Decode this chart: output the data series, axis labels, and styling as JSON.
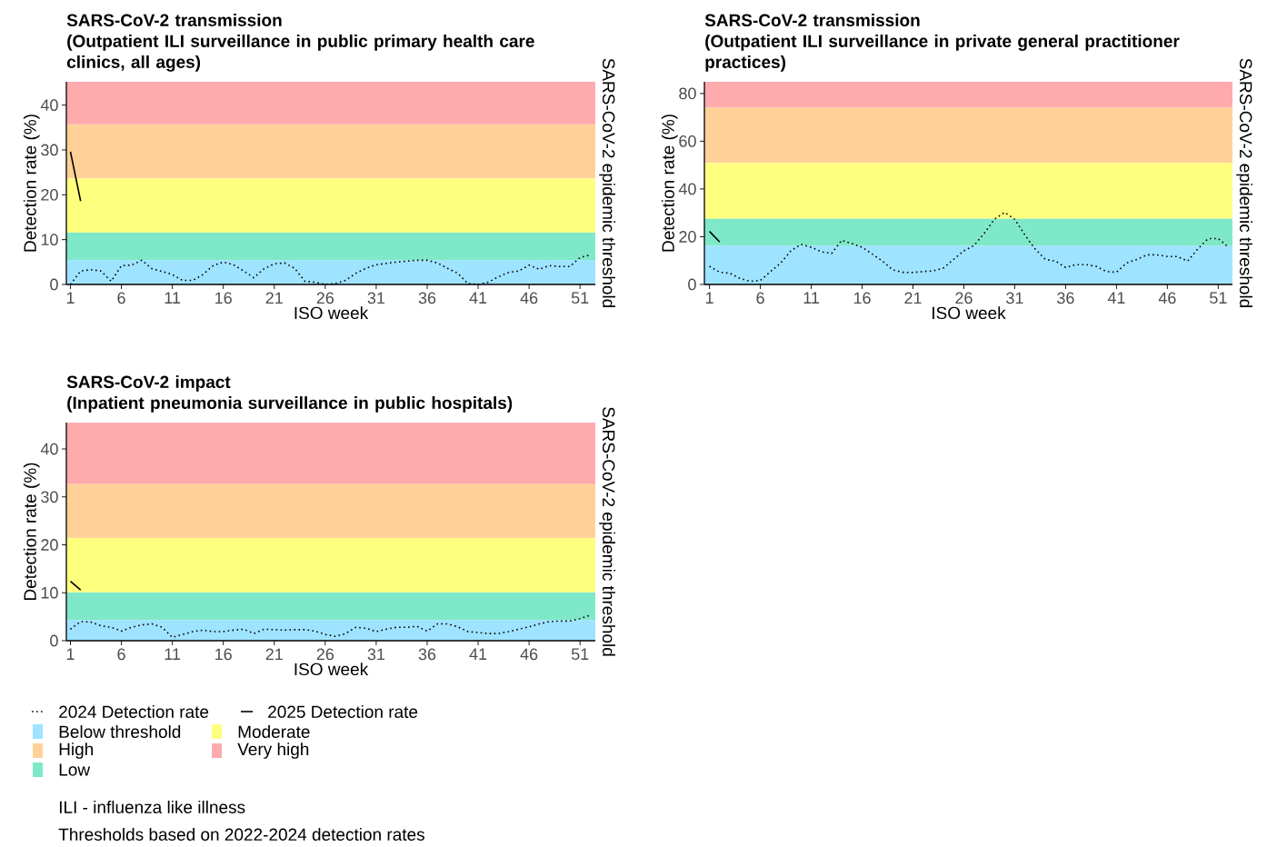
{
  "chart_data": [
    {
      "type": "line",
      "title": "SARS-CoV-2 transmission",
      "subtitle": "(Outpatient ILI surveillance in public primary health care clinics, all ages)",
      "xlabel": "ISO week",
      "ylabel": "Detection rate (%)",
      "y2label": "SARS-CoV-2 epidemic threshold",
      "xlim": [
        0.6,
        52.5
      ],
      "xticks": [
        1,
        6,
        11,
        16,
        21,
        26,
        31,
        36,
        41,
        46,
        51
      ],
      "ylim": [
        0,
        45.2
      ],
      "yticks": [
        0,
        10,
        20,
        30,
        40
      ],
      "bands": [
        {
          "axis": "y",
          "from": 0,
          "to": 5.4,
          "color": "#9ee3ff"
        },
        {
          "axis": "y",
          "from": 23.6,
          "to": 35.7,
          "color": "#ffd199"
        },
        {
          "axis": "y",
          "from": 5.4,
          "to": 11.6,
          "color": "#7fe8c8"
        },
        {
          "axis": "y",
          "from": 11.6,
          "to": 23.6,
          "color": "#ffff7f"
        },
        {
          "axis": "y",
          "from": 35.7,
          "to": 45.2,
          "color": "#ffaaad"
        }
      ],
      "marker": "none",
      "series": [
        {
          "color": "#000000",
          "line_style": "dotted",
          "x": [
            1,
            2,
            3,
            4,
            5,
            6,
            7,
            8,
            9,
            10,
            11,
            12,
            13,
            14,
            15,
            16,
            17,
            18,
            19,
            20,
            21,
            22,
            23,
            24,
            25,
            26,
            27,
            28,
            29,
            30,
            31,
            32,
            33,
            34,
            35,
            36,
            37,
            38,
            39,
            40,
            41,
            42,
            43,
            44,
            45,
            46,
            47,
            48,
            49,
            50,
            51,
            52
          ],
          "values": [
            0,
            3,
            3.3,
            3,
            0.7,
            4.2,
            4.3,
            5.4,
            3.5,
            2.9,
            2.2,
            0.9,
            0.9,
            2.2,
            4.2,
            5.0,
            4.4,
            3.0,
            1.5,
            3.5,
            4.6,
            4.8,
            3.6,
            0.7,
            0.5,
            0,
            0.2,
            0.9,
            2.5,
            3.6,
            4.4,
            4.7,
            5.0,
            5.2,
            5.4,
            5.4,
            4.8,
            3.6,
            2.5,
            0.2,
            0,
            0.5,
            1.7,
            2.7,
            3.0,
            4.3,
            3.4,
            4.2,
            4.0,
            4.0,
            6.0,
            6.6
          ]
        },
        {
          "color": "#000000",
          "line_style": "solid",
          "x": [
            1,
            2
          ],
          "values": [
            29.6,
            18.6
          ]
        }
      ]
    },
    {
      "type": "line",
      "title": "SARS-CoV-2 transmission",
      "subtitle": "(Outpatient ILI surveillance in private general practitioner practices)",
      "xlabel": "ISO week",
      "ylabel": "Detection rate (%)",
      "y2label": "SARS-CoV-2 epidemic threshold",
      "xlim": [
        0.5,
        52.4
      ],
      "xticks": [
        1,
        6,
        11,
        16,
        21,
        26,
        31,
        36,
        41,
        46,
        51
      ],
      "ylim": [
        0,
        84.9
      ],
      "yticks": [
        0,
        20,
        40,
        60,
        80
      ],
      "bands": [
        {
          "axis": "y",
          "from": 0,
          "to": 16.3,
          "color": "#9ee3ff"
        },
        {
          "axis": "y",
          "from": 50.9,
          "to": 74.1,
          "color": "#ffd199"
        },
        {
          "axis": "y",
          "from": 16.3,
          "to": 27.6,
          "color": "#7fe8c8"
        },
        {
          "axis": "y",
          "from": 27.6,
          "to": 50.9,
          "color": "#ffff7f"
        },
        {
          "axis": "y",
          "from": 74.1,
          "to": 84.9,
          "color": "#ffaaad"
        }
      ],
      "marker": "none",
      "series": [
        {
          "color": "#000000",
          "line_style": "dotted",
          "x": [
            1,
            2,
            3,
            4,
            5,
            6,
            7,
            8,
            9,
            10,
            11,
            12,
            13,
            14,
            15,
            16,
            17,
            18,
            19,
            20,
            21,
            22,
            23,
            24,
            25,
            26,
            27,
            28,
            29,
            30,
            31,
            32,
            33,
            34,
            35,
            36,
            37,
            38,
            39,
            40,
            41,
            42,
            43,
            44,
            45,
            46,
            47,
            48,
            49,
            50,
            51,
            52
          ],
          "values": [
            7.6,
            5.1,
            4.7,
            2.5,
            1.3,
            1.7,
            5.4,
            9.0,
            14.1,
            16.8,
            15.6,
            13.7,
            13.0,
            18.5,
            17.1,
            15.6,
            12.7,
            9.8,
            6.1,
            5.1,
            5.0,
            5.4,
            5.7,
            6.9,
            10.5,
            14.1,
            16.3,
            21.4,
            27.3,
            30.2,
            27.3,
            20.7,
            14.9,
            10.5,
            9.8,
            7.1,
            8.3,
            8.3,
            7.6,
            5.4,
            5.1,
            9.0,
            10.5,
            12.4,
            12.4,
            11.7,
            11.7,
            9.8,
            14.9,
            19.2,
            19.2,
            15.6
          ]
        },
        {
          "color": "#000000",
          "line_style": "solid",
          "x": [
            1,
            2
          ],
          "values": [
            22.2,
            17.8
          ]
        }
      ]
    },
    {
      "type": "line",
      "title": "SARS-CoV-2 impact",
      "subtitle": "(Inpatient pneumonia surveillance in public hospitals)",
      "xlabel": "ISO week",
      "ylabel": "Detection rate (%)",
      "y2label": "SARS-CoV-2 epidemic threshold",
      "xlim": [
        0.6,
        52.5
      ],
      "xticks": [
        1,
        6,
        11,
        16,
        21,
        26,
        31,
        36,
        41,
        46,
        51
      ],
      "ylim": [
        0,
        45.5
      ],
      "yticks": [
        0,
        10,
        20,
        30,
        40
      ],
      "bands": [
        {
          "axis": "y",
          "from": 0,
          "to": 4.3,
          "color": "#9ee3ff",
          "label": "Below threshold"
        },
        {
          "axis": "y",
          "from": 21.4,
          "to": 32.7,
          "color": "#ffd199",
          "label": "High"
        },
        {
          "axis": "y",
          "from": 4.3,
          "to": 10.1,
          "color": "#7fe8c8",
          "label": "Low"
        },
        {
          "axis": "y",
          "from": 10.1,
          "to": 21.4,
          "color": "#ffff7f",
          "label": "Moderate"
        },
        {
          "axis": "y",
          "from": 32.7,
          "to": 45.5,
          "color": "#ffaaad",
          "label": "Very high"
        }
      ],
      "marker": "none",
      "legend": "bottom",
      "annotations": [
        "ILI - influenza like illness",
        "Thresholds based on 2022-2024 detection rates"
      ],
      "series": [
        {
          "name": "2024 Detection rate",
          "color": "#000000",
          "line_style": "dotted",
          "x": [
            1,
            2,
            3,
            4,
            5,
            6,
            7,
            8,
            9,
            10,
            11,
            12,
            13,
            14,
            15,
            16,
            17,
            18,
            19,
            20,
            21,
            22,
            23,
            24,
            25,
            26,
            27,
            28,
            29,
            30,
            31,
            32,
            33,
            34,
            35,
            36,
            37,
            38,
            39,
            40,
            41,
            42,
            43,
            44,
            45,
            46,
            47,
            48,
            49,
            50,
            51,
            52
          ],
          "values": [
            2.4,
            4.0,
            3.9,
            3.1,
            2.8,
            2.0,
            2.8,
            3.3,
            3.5,
            2.8,
            0.7,
            1.3,
            1.9,
            2.2,
            1.9,
            1.9,
            2.2,
            2.4,
            1.5,
            2.4,
            2.3,
            2.2,
            2.3,
            2.3,
            2.0,
            1.3,
            0.9,
            1.5,
            2.8,
            2.6,
            1.9,
            2.4,
            2.8,
            2.8,
            3.0,
            2.0,
            3.5,
            3.5,
            2.9,
            1.9,
            1.7,
            1.5,
            1.5,
            1.9,
            2.4,
            2.9,
            3.5,
            4.0,
            4.1,
            4.1,
            4.6,
            5.3
          ]
        },
        {
          "name": "2025 Detection rate",
          "color": "#000000",
          "line_style": "solid",
          "x": [
            1,
            2
          ],
          "values": [
            12.4,
            10.6
          ]
        }
      ]
    }
  ]
}
